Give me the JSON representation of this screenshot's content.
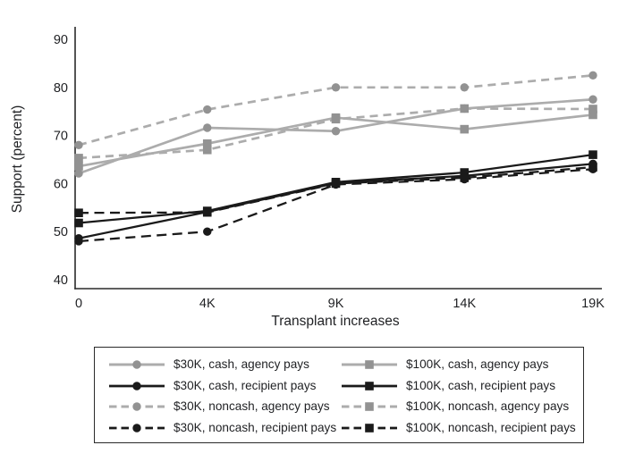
{
  "chart_data": {
    "type": "line",
    "title": "",
    "xlabel": "Transplant increases",
    "ylabel": "Support (percent)",
    "x_categories": [
      "0",
      "4K",
      "9K",
      "14K",
      "19K"
    ],
    "y_ticks": [
      40,
      50,
      60,
      70,
      80,
      90
    ],
    "ylim": [
      40,
      93
    ],
    "grid": false,
    "legend_position": "bottom",
    "colors": {
      "gray_line": "#acacac",
      "gray_marker": "#929292",
      "black_line": "#1a1a1a",
      "black_marker": "#1a1a1a",
      "axis": "#2a2a2a",
      "text": "#1f2023"
    },
    "series": [
      {
        "name": "$30K, cash, agency pays",
        "color": "gray",
        "dash": "solid",
        "marker": "circle",
        "values": [
          62.1,
          71.6,
          70.9,
          75.6,
          77.5
        ]
      },
      {
        "name": "$100K, cash, agency pays",
        "color": "gray",
        "dash": "solid",
        "marker": "square",
        "values": [
          63.6,
          68.3,
          73.7,
          71.3,
          74.3
        ]
      },
      {
        "name": "$30K, cash, recipient pays",
        "color": "black",
        "dash": "solid",
        "marker": "circle",
        "values": [
          48.6,
          54.1,
          60.1,
          61.6,
          64.1
        ]
      },
      {
        "name": "$100K, cash, recipient pays",
        "color": "black",
        "dash": "solid",
        "marker": "square",
        "values": [
          51.8,
          54.3,
          60.3,
          62.3,
          66.0
        ]
      },
      {
        "name": "$30K, noncash, agency pays",
        "color": "gray",
        "dash": "dashed",
        "marker": "circle",
        "values": [
          68.0,
          75.4,
          80.0,
          80.0,
          82.5
        ]
      },
      {
        "name": "$100K, noncash, agency pays",
        "color": "gray",
        "dash": "dashed",
        "marker": "square",
        "values": [
          65.3,
          67.0,
          73.4,
          75.6,
          75.5
        ]
      },
      {
        "name": "$30K, noncash, recipient pays",
        "color": "black",
        "dash": "dashed",
        "marker": "circle",
        "values": [
          48.0,
          50.0,
          59.8,
          60.9,
          63.0
        ]
      },
      {
        "name": "$100K, noncash, recipient pays",
        "color": "black",
        "dash": "dashed",
        "marker": "square",
        "values": [
          53.9,
          54.0,
          60.0,
          61.2,
          63.4
        ]
      }
    ],
    "legend_order": [
      0,
      1,
      2,
      3,
      4,
      5,
      6,
      7
    ]
  }
}
